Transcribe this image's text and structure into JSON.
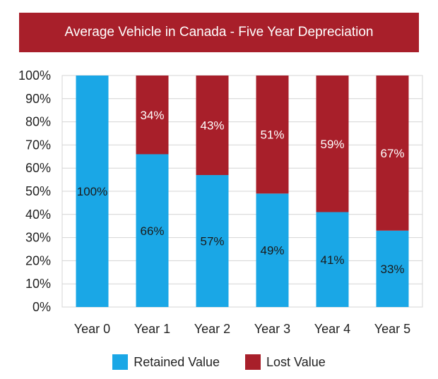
{
  "chart_data": {
    "type": "bar",
    "stacked": true,
    "title": "Average Vehicle in Canada - Five Year Depreciation",
    "categories": [
      "Year 0",
      "Year 1",
      "Year 2",
      "Year 3",
      "Year 4",
      "Year 5"
    ],
    "series": [
      {
        "name": "Retained Value",
        "color": "#1aa7e6",
        "values": [
          100,
          66,
          57,
          49,
          41,
          33
        ],
        "labels": [
          "100%",
          "66%",
          "57%",
          "49%",
          "41%",
          "33%"
        ]
      },
      {
        "name": "Lost Value",
        "color": "#a81f2a",
        "values": [
          0,
          34,
          43,
          51,
          59,
          67
        ],
        "labels": [
          "",
          "34%",
          "43%",
          "51%",
          "59%",
          "67%"
        ]
      }
    ],
    "ylim": [
      0,
      100
    ],
    "yticks": [
      "0%",
      "10%",
      "20%",
      "30%",
      "40%",
      "50%",
      "60%",
      "70%",
      "80%",
      "90%",
      "100%"
    ],
    "legend_position": "bottom",
    "grid": true
  }
}
